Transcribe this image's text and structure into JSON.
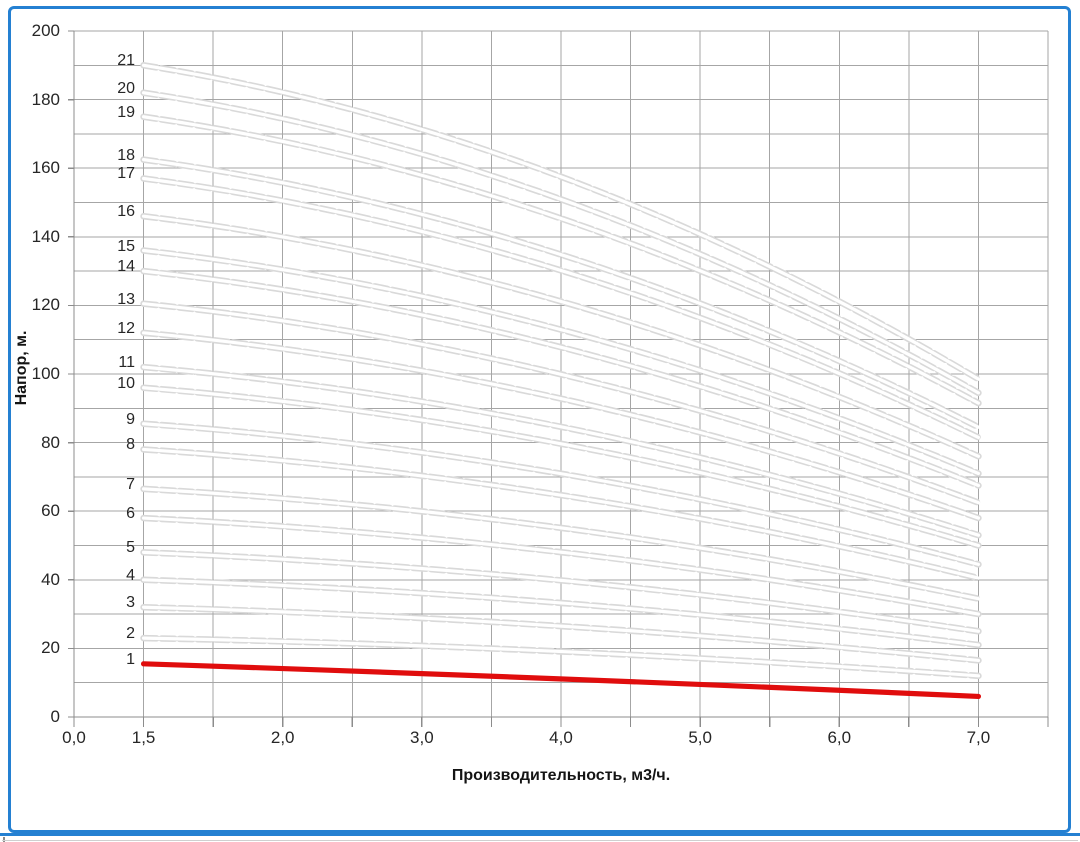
{
  "frame": {
    "border_color": "#2480d2",
    "background": "#ffffff"
  },
  "chart_data": {
    "type": "line",
    "title": "",
    "xlabel": "Производительность, м3/ч.",
    "ylabel": "Напор, м.",
    "ylim": [
      0,
      200
    ],
    "y_grid_step": 10,
    "y_label_step": 20,
    "y_tick_labels": [
      "0",
      "20",
      "40",
      "60",
      "80",
      "100",
      "120",
      "140",
      "160",
      "180",
      "200"
    ],
    "x_slots": 15,
    "x_tick_labels": [
      {
        "label": "0,0",
        "slot": 0
      },
      {
        "label": "1,5",
        "slot": 1
      },
      {
        "label": "2,0",
        "slot": 3
      },
      {
        "label": "3,0",
        "slot": 5
      },
      {
        "label": "4,0",
        "slot": 7
      },
      {
        "label": "5,0",
        "slot": 9
      },
      {
        "label": "6,0",
        "slot": 11
      },
      {
        "label": "7,0",
        "slot": 13
      }
    ],
    "grid": "on",
    "legend": "none",
    "q_start": 1.5,
    "q_mid": 4.0,
    "q_end": 7.0,
    "grid_color": "#a6a6a6",
    "axis_color": "#8c8c8c",
    "curve_color": "#d9d9d9",
    "curve_core_color": "#ffffff",
    "highlight_color": "#e00d0d",
    "series": [
      {
        "label": "1",
        "h_start": 15.5,
        "h_mid": 11.5,
        "h_end": 6,
        "highlight": true
      },
      {
        "label": "2",
        "h_start": 23,
        "h_mid": 19.5,
        "h_end": 12,
        "highlight": false
      },
      {
        "label": "3",
        "h_start": 32,
        "h_mid": 27,
        "h_end": 16.5,
        "highlight": false
      },
      {
        "label": "4",
        "h_start": 40,
        "h_mid": 34,
        "h_end": 21,
        "highlight": false
      },
      {
        "label": "5",
        "h_start": 48,
        "h_mid": 41,
        "h_end": 25,
        "highlight": false
      },
      {
        "label": "6",
        "h_start": 58,
        "h_mid": 49.5,
        "h_end": 30,
        "highlight": false
      },
      {
        "label": "7",
        "h_start": 66.5,
        "h_mid": 56.5,
        "h_end": 34.5,
        "highlight": false
      },
      {
        "label": "8",
        "h_start": 78,
        "h_mid": 66.5,
        "h_end": 40.5,
        "highlight": false
      },
      {
        "label": "9",
        "h_start": 85.5,
        "h_mid": 73,
        "h_end": 44.5,
        "highlight": false
      },
      {
        "label": "10",
        "h_start": 96,
        "h_mid": 81.5,
        "h_end": 50,
        "highlight": false
      },
      {
        "label": "11",
        "h_start": 102,
        "h_mid": 87,
        "h_end": 53,
        "highlight": false
      },
      {
        "label": "12",
        "h_start": 112,
        "h_mid": 95,
        "h_end": 58,
        "highlight": false
      },
      {
        "label": "13",
        "h_start": 120.5,
        "h_mid": 102.5,
        "h_end": 62.5,
        "highlight": false
      },
      {
        "label": "14",
        "h_start": 130,
        "h_mid": 110.5,
        "h_end": 67.5,
        "highlight": false
      },
      {
        "label": "15",
        "h_start": 136,
        "h_mid": 116,
        "h_end": 71,
        "highlight": false
      },
      {
        "label": "16",
        "h_start": 146,
        "h_mid": 124,
        "h_end": 76,
        "highlight": false
      },
      {
        "label": "17",
        "h_start": 157,
        "h_mid": 133.5,
        "h_end": 81.5,
        "highlight": false
      },
      {
        "label": "18",
        "h_start": 162.5,
        "h_mid": 138,
        "h_end": 84.5,
        "highlight": false
      },
      {
        "label": "19",
        "h_start": 175,
        "h_mid": 149,
        "h_end": 91.5,
        "highlight": false
      },
      {
        "label": "20",
        "h_start": 182,
        "h_mid": 155,
        "h_end": 94.5,
        "highlight": false
      },
      {
        "label": "21",
        "h_start": 190,
        "h_mid": 161.5,
        "h_end": 98.5,
        "highlight": false
      }
    ]
  }
}
